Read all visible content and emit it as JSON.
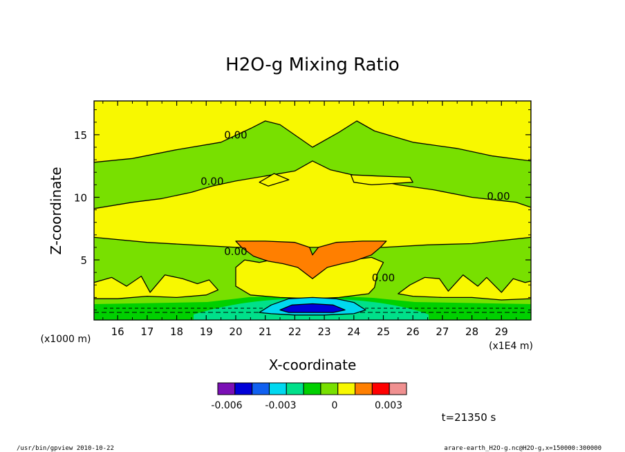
{
  "chart_data": {
    "type": "contour",
    "title": "H2O-g Mixing Ratio",
    "xlabel": "X-coordinate",
    "ylabel": "Z-coordinate",
    "x_unit": "(x1E4 m)",
    "y_unit": "(x1000 m)",
    "xlim": [
      15.2,
      30.0
    ],
    "ylim": [
      0.2,
      17.7
    ],
    "x_ticks": [
      16,
      17,
      18,
      19,
      20,
      21,
      22,
      23,
      24,
      25,
      26,
      27,
      28,
      29
    ],
    "y_ticks": [
      5,
      10,
      15
    ],
    "contour_labels": [
      {
        "text": "0.00",
        "x": 20.0,
        "y": 14.7
      },
      {
        "text": "0.00",
        "x": 19.2,
        "y": 11.0
      },
      {
        "text": "0.00",
        "x": 28.9,
        "y": 9.8
      },
      {
        "text": "0.00",
        "x": 20.0,
        "y": 5.4
      },
      {
        "text": "0.00",
        "x": 25.0,
        "y": 3.3
      }
    ],
    "regions": [
      {
        "level": "yellow",
        "band": "0 to 0.0005",
        "polygon": [
          [
            15.2,
            12.8
          ],
          [
            16.5,
            13.1
          ],
          [
            18.0,
            13.8
          ],
          [
            19.5,
            14.4
          ],
          [
            20.5,
            15.5
          ],
          [
            21.0,
            16.1
          ],
          [
            21.5,
            15.8
          ],
          [
            22.6,
            14.0
          ],
          [
            23.5,
            15.2
          ],
          [
            24.1,
            16.1
          ],
          [
            24.7,
            15.3
          ],
          [
            26.0,
            14.4
          ],
          [
            27.5,
            13.9
          ],
          [
            28.7,
            13.3
          ],
          [
            30.0,
            12.9
          ],
          [
            30.0,
            17.7
          ],
          [
            15.2,
            17.7
          ]
        ]
      },
      {
        "level": "yellow",
        "band": "0 to 0.0005",
        "polygon": [
          [
            15.2,
            9.1
          ],
          [
            16.5,
            9.6
          ],
          [
            17.5,
            9.9
          ],
          [
            18.5,
            10.4
          ],
          [
            19.2,
            10.9
          ],
          [
            20.0,
            11.3
          ],
          [
            21.0,
            11.7
          ],
          [
            22.0,
            12.1
          ],
          [
            22.6,
            12.9
          ],
          [
            23.2,
            12.2
          ],
          [
            24.5,
            11.5
          ],
          [
            25.5,
            11.0
          ],
          [
            26.7,
            10.6
          ],
          [
            28.0,
            10.0
          ],
          [
            29.5,
            9.6
          ],
          [
            30.0,
            9.2
          ],
          [
            30.0,
            6.8
          ],
          [
            28.0,
            6.3
          ],
          [
            26.5,
            6.2
          ],
          [
            25.0,
            6.0
          ],
          [
            20.0,
            6.0
          ],
          [
            18.5,
            6.2
          ],
          [
            17.0,
            6.4
          ],
          [
            15.2,
            6.8
          ]
        ]
      },
      {
        "level": "yellow",
        "band": "0 to 0.0005",
        "polygon": [
          [
            20.8,
            11.2
          ],
          [
            21.3,
            11.9
          ],
          [
            21.8,
            11.4
          ],
          [
            21.1,
            10.9
          ]
        ]
      },
      {
        "level": "yellow",
        "band": "0 to 0.0005",
        "polygon": [
          [
            23.9,
            11.8
          ],
          [
            24.8,
            11.7
          ],
          [
            25.9,
            11.6
          ],
          [
            26.0,
            11.2
          ],
          [
            24.6,
            11.0
          ],
          [
            24.0,
            11.2
          ]
        ]
      },
      {
        "level": "yellow",
        "band": "0 to 0.0005",
        "polygon": [
          [
            15.2,
            3.2
          ],
          [
            15.8,
            3.6
          ],
          [
            16.3,
            2.9
          ],
          [
            16.8,
            3.7
          ],
          [
            17.1,
            2.4
          ],
          [
            17.6,
            3.8
          ],
          [
            18.2,
            3.5
          ],
          [
            18.7,
            3.1
          ],
          [
            19.1,
            3.4
          ],
          [
            19.4,
            2.6
          ],
          [
            19.0,
            2.2
          ],
          [
            18.0,
            2.0
          ],
          [
            17.0,
            2.1
          ],
          [
            16.0,
            1.9
          ],
          [
            15.2,
            1.9
          ]
        ]
      },
      {
        "level": "yellow",
        "band": "0 to 0.0005",
        "polygon": [
          [
            25.5,
            2.3
          ],
          [
            25.9,
            3.0
          ],
          [
            26.4,
            3.6
          ],
          [
            26.9,
            3.5
          ],
          [
            27.2,
            2.5
          ],
          [
            27.7,
            3.8
          ],
          [
            28.2,
            2.9
          ],
          [
            28.5,
            3.6
          ],
          [
            29.0,
            2.4
          ],
          [
            29.4,
            3.5
          ],
          [
            29.8,
            3.2
          ],
          [
            30.0,
            3.3
          ],
          [
            30.0,
            1.9
          ],
          [
            29.0,
            1.8
          ],
          [
            28.0,
            2.0
          ],
          [
            27.0,
            2.0
          ],
          [
            26.0,
            2.1
          ]
        ]
      },
      {
        "level": "yellow",
        "band": "0 to 0.0005",
        "polygon": [
          [
            20.0,
            4.4
          ],
          [
            20.3,
            5.0
          ],
          [
            20.8,
            4.8
          ],
          [
            21.4,
            5.1
          ],
          [
            22.0,
            4.6
          ],
          [
            22.6,
            4.1
          ],
          [
            23.2,
            4.6
          ],
          [
            23.9,
            5.0
          ],
          [
            24.6,
            5.2
          ],
          [
            25.0,
            4.8
          ],
          [
            24.8,
            3.9
          ],
          [
            24.7,
            2.8
          ],
          [
            24.5,
            2.3
          ],
          [
            23.5,
            2.0
          ],
          [
            22.6,
            1.9
          ],
          [
            21.5,
            2.0
          ],
          [
            20.5,
            2.2
          ],
          [
            20.0,
            2.9
          ]
        ]
      },
      {
        "level": "orange",
        "band": "0.0015 to 0.002",
        "polygon": [
          [
            20.0,
            6.5
          ],
          [
            21.0,
            6.5
          ],
          [
            22.0,
            6.4
          ],
          [
            22.5,
            6.0
          ],
          [
            22.6,
            5.4
          ],
          [
            22.8,
            6.0
          ],
          [
            23.4,
            6.4
          ],
          [
            24.3,
            6.5
          ],
          [
            25.1,
            6.5
          ],
          [
            24.9,
            6.0
          ],
          [
            24.6,
            5.4
          ],
          [
            24.0,
            4.9
          ],
          [
            23.6,
            4.7
          ],
          [
            23.1,
            4.4
          ],
          [
            22.6,
            3.5
          ],
          [
            22.1,
            4.4
          ],
          [
            21.6,
            4.7
          ],
          [
            21.1,
            4.9
          ],
          [
            20.6,
            5.3
          ],
          [
            20.2,
            6.0
          ]
        ]
      },
      {
        "level": "cyan",
        "band": "-0.004 to -0.003",
        "polygon": [
          [
            20.8,
            0.8
          ],
          [
            21.2,
            1.4
          ],
          [
            21.8,
            1.9
          ],
          [
            22.6,
            2.0
          ],
          [
            23.4,
            1.9
          ],
          [
            24.0,
            1.6
          ],
          [
            24.4,
            1.0
          ],
          [
            24.0,
            0.7
          ],
          [
            23.0,
            0.6
          ],
          [
            22.0,
            0.6
          ],
          [
            21.2,
            0.7
          ]
        ]
      },
      {
        "level": "blue",
        "band": "-0.005 to -0.004",
        "polygon": [
          [
            21.5,
            1.0
          ],
          [
            21.9,
            1.4
          ],
          [
            22.6,
            1.5
          ],
          [
            23.3,
            1.4
          ],
          [
            23.7,
            1.0
          ],
          [
            23.3,
            0.8
          ],
          [
            22.5,
            0.8
          ],
          [
            21.8,
            0.8
          ]
        ]
      }
    ],
    "colorbar": {
      "colors": [
        "#7a0fb5",
        "#0000d8",
        "#1060f0",
        "#00d8f0",
        "#00e08a",
        "#00d000",
        "#78e000",
        "#f8f800",
        "#ff7f00",
        "#ff0000",
        "#f09090"
      ],
      "tick_labels": [
        "-0.006",
        "-0.003",
        "0",
        "0.003"
      ],
      "tick_values": [
        -0.006,
        -0.003,
        0,
        0.003
      ],
      "min": -0.0065,
      "max": 0.004
    },
    "background_level": "green",
    "background_color": "#78e000"
  },
  "annotations": {
    "time": "t=21350 s",
    "footer_left": "/usr/bin/gpview   2010-10-22",
    "footer_right": "arare-earth_H2O-g.nc@H2O-g,x=150000:300000"
  },
  "colors": {
    "yellow": "#f8f800",
    "orange": "#ff7f00",
    "cyan": "#00d8f0",
    "blue": "#0000d8",
    "green_light": "#78e000",
    "green_mid": "#00d000",
    "green_teal": "#00e08a"
  }
}
